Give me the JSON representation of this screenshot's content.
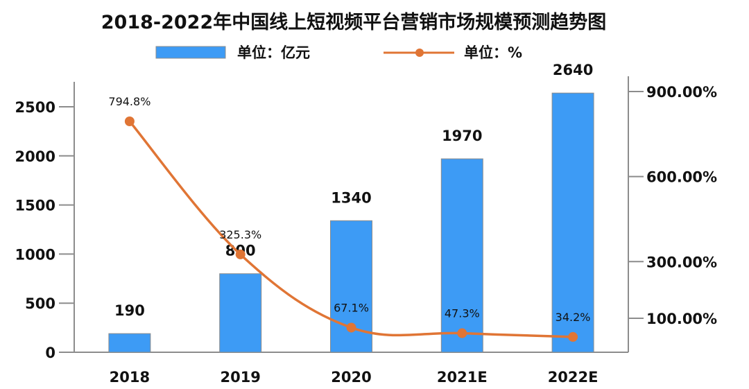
{
  "chart_data": {
    "type": "bar",
    "title": "2018-2022年中国线上短视频平台营销市场规模预测趋势图",
    "categories": [
      "2018",
      "2019",
      "2020",
      "2021E",
      "2022E"
    ],
    "series": [
      {
        "name": "单位：亿元",
        "type": "bar",
        "axis": "left",
        "values": [
          190,
          800,
          1340,
          1970,
          2640
        ],
        "labels": [
          "190",
          "800",
          "1340",
          "1970",
          "2640"
        ],
        "color": "#3d9bf5"
      },
      {
        "name": "单位：%",
        "type": "line",
        "axis": "right",
        "values": [
          794.8,
          325.3,
          67.1,
          47.3,
          34.2
        ],
        "labels": [
          "794.8%",
          "325.3%",
          "67.1%",
          "47.3%",
          "34.2%"
        ],
        "color": "#e07535"
      }
    ],
    "left_axis": {
      "ticks": [
        0,
        500,
        1000,
        1500,
        2000,
        2500
      ],
      "tick_labels": [
        "0",
        "500",
        "1000",
        "1500",
        "2000",
        "2500"
      ]
    },
    "right_axis": {
      "ticks": [
        100,
        300,
        600,
        900
      ],
      "tick_labels": [
        "100.00%",
        "300.00%",
        "600.00%",
        "900.00%"
      ]
    },
    "legend": {
      "placement": "top"
    },
    "grid": false
  }
}
